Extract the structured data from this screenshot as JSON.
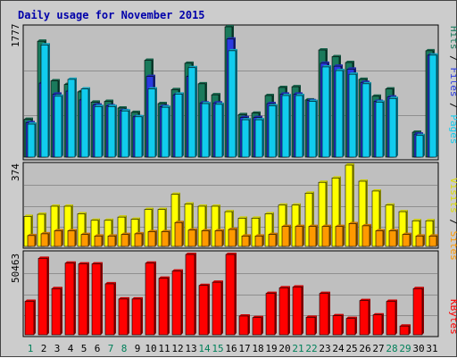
{
  "chart_data": {
    "type": "bar",
    "title": "Daily usage for November 2015",
    "days": [
      "1",
      "2",
      "3",
      "4",
      "5",
      "6",
      "7",
      "8",
      "9",
      "10",
      "11",
      "12",
      "13",
      "14",
      "15",
      "16",
      "17",
      "18",
      "19",
      "20",
      "21",
      "22",
      "23",
      "24",
      "25",
      "26",
      "27",
      "28",
      "29",
      "30",
      "31"
    ],
    "weekend_days": [
      "1",
      "7",
      "8",
      "14",
      "15",
      "21",
      "22",
      "28",
      "29"
    ],
    "top_panel": {
      "max_label": "1777",
      "ymax": 1777,
      "legend": [
        "Pages",
        "Files",
        "Hits"
      ],
      "series": [
        {
          "name": "Hits",
          "color": "#1a7a5c",
          "values": [
            515,
            1580,
            1040,
            990,
            890,
            750,
            760,
            670,
            610,
            1320,
            730,
            920,
            1280,
            1000,
            850,
            1777,
            580,
            600,
            840,
            950,
            960,
            780,
            1460,
            1370,
            1290,
            1060,
            830,
            930,
            0,
            340,
            1450
          ]
        },
        {
          "name": "Files",
          "color": "#2a3ae0",
          "values": [
            470,
            1010,
            860,
            900,
            780,
            710,
            700,
            635,
            550,
            1100,
            690,
            850,
            1100,
            740,
            740,
            1610,
            540,
            540,
            730,
            860,
            860,
            770,
            1280,
            1240,
            1200,
            1020,
            760,
            820,
            0,
            315,
            1390
          ]
        },
        {
          "name": "Pages",
          "color": "#11ccee",
          "values": [
            450,
            1530,
            830,
            1060,
            930,
            690,
            690,
            630,
            550,
            930,
            680,
            860,
            1220,
            730,
            720,
            1450,
            510,
            510,
            700,
            840,
            840,
            760,
            1230,
            1180,
            1130,
            1000,
            750,
            800,
            0,
            295,
            1390
          ]
        }
      ]
    },
    "middle_panel": {
      "max_label": "374",
      "ymax": 374,
      "legend": [
        "Sites",
        "Visits"
      ],
      "series": [
        {
          "name": "Visits",
          "color": "#ffff00",
          "values": [
            138,
            148,
            185,
            185,
            150,
            120,
            120,
            135,
            125,
            170,
            170,
            240,
            195,
            185,
            185,
            160,
            130,
            130,
            150,
            190,
            190,
            245,
            295,
            315,
            374,
            300,
            255,
            190,
            160,
            118,
            118
          ]
        },
        {
          "name": "Sites",
          "color": "#ff9900",
          "values": [
            50,
            58,
            72,
            72,
            55,
            48,
            48,
            55,
            58,
            68,
            68,
            110,
            75,
            72,
            72,
            78,
            48,
            48,
            55,
            92,
            92,
            92,
            92,
            92,
            105,
            95,
            72,
            72,
            55,
            48,
            48
          ]
        }
      ]
    },
    "bottom_panel": {
      "max_label": "50463",
      "ymax": 50463,
      "legend": [
        "KBytes"
      ],
      "series": [
        {
          "name": "KBytes",
          "color": "#ff0000",
          "values": [
            21000,
            48000,
            29000,
            45000,
            44500,
            44500,
            32000,
            22500,
            22500,
            45000,
            35500,
            40000,
            50463,
            31000,
            33000,
            50463,
            11800,
            10800,
            26000,
            29500,
            30000,
            11000,
            26000,
            12000,
            10300,
            21500,
            12500,
            21000,
            5500,
            29000,
            0
          ]
        }
      ]
    }
  }
}
